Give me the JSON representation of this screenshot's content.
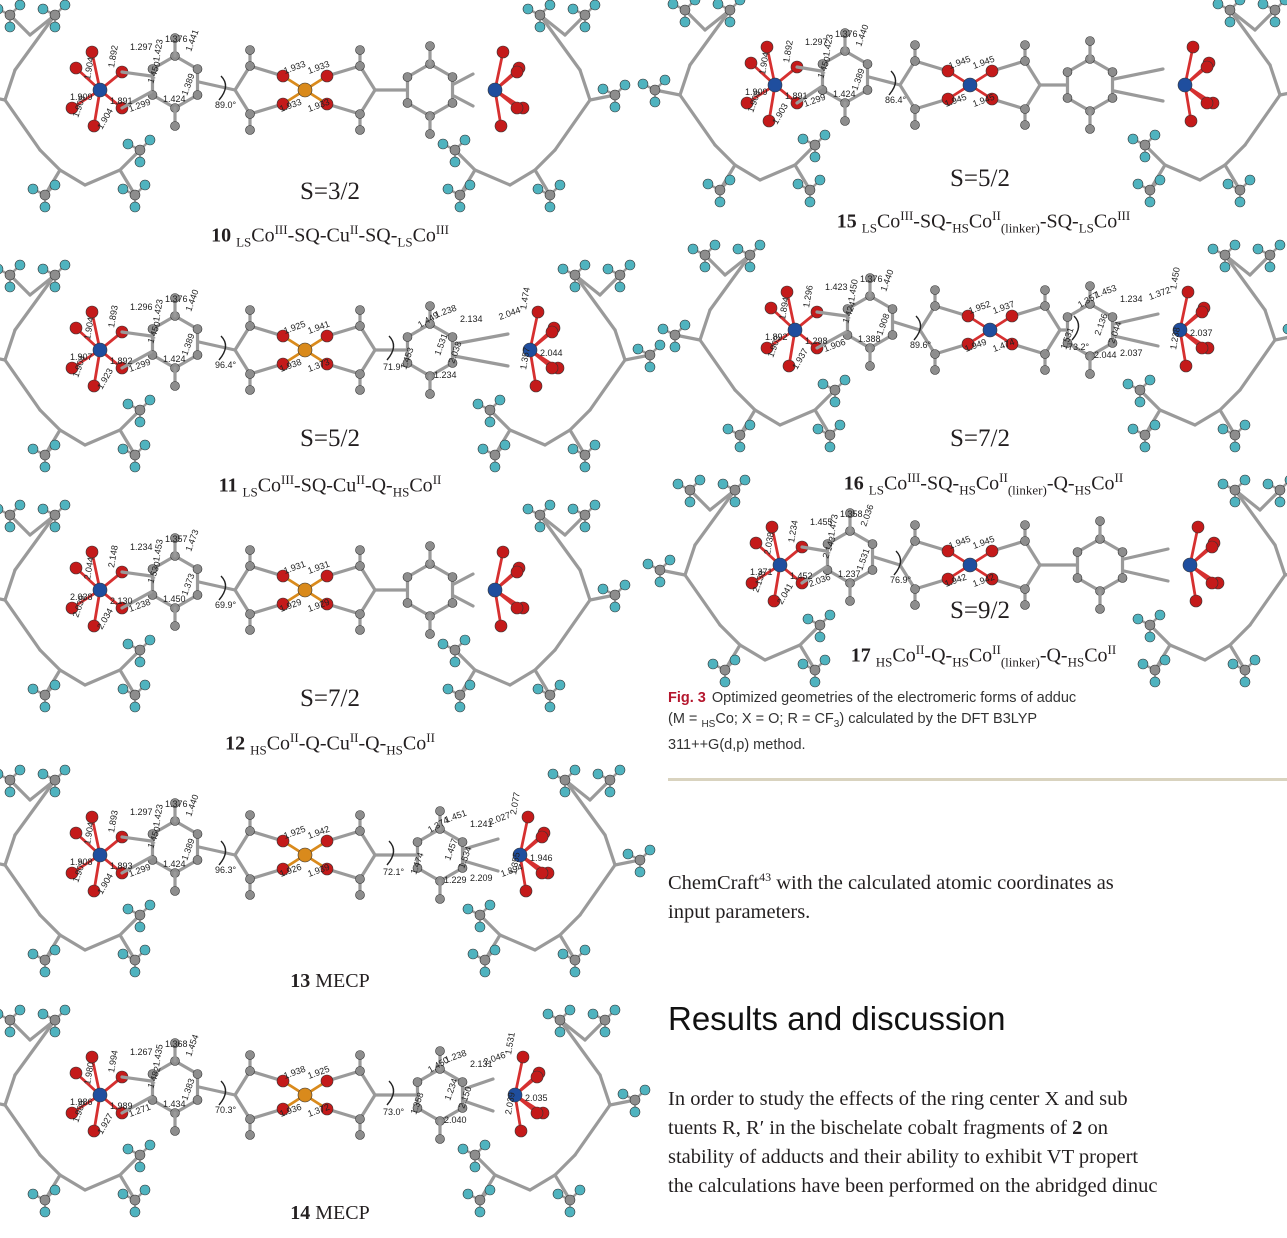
{
  "panels": [
    {
      "id": "10",
      "spin": "S=3/2",
      "num": "10",
      "parts": [
        [
          "LS",
          ""
        ],
        [
          "Co",
          "III"
        ],
        [
          "-SQ-Cu",
          "II"
        ],
        [
          "-SQ-",
          ""
        ],
        [
          "LS",
          ""
        ],
        [
          "Co",
          "III"
        ]
      ],
      "bonds": [
        "1.904",
        "1.892",
        "1.297",
        "1.376",
        "1.423",
        "1.441",
        "1.450",
        "1.424",
        "1.389",
        "1.909",
        "1.891",
        "1.299",
        "1.908",
        "1.904",
        "1.933",
        "1.933",
        "1.933",
        "1.933"
      ],
      "angle": "89.0°"
    },
    {
      "id": "11",
      "spin": "S=5/2",
      "num": "11",
      "parts": [
        [
          "LS",
          ""
        ],
        [
          "Co",
          "III"
        ],
        [
          "-SQ-Cu",
          "II"
        ],
        [
          "-Q-",
          ""
        ],
        [
          "HS",
          ""
        ],
        [
          "Co",
          "II"
        ]
      ],
      "bonds": [
        "1.904",
        "1.893",
        "1.296",
        "1.376",
        "1.423",
        "1.440",
        "1.450",
        "1.424",
        "1.389",
        "1.907",
        "1.892",
        "1.299",
        "1.904",
        "1.923",
        "1.925",
        "1.941",
        "1.938",
        "1.373",
        "1.449",
        "1.238",
        "2.134",
        "2.044",
        "1.474",
        "1.453",
        "1.531",
        "2.038",
        "2.044",
        "1.357",
        "1.234"
      ],
      "angle": "96.4°",
      "angle2": "71.9°"
    },
    {
      "id": "12",
      "spin": "S=7/2",
      "num": "12",
      "parts": [
        [
          "HS",
          ""
        ],
        [
          "Co",
          "II"
        ],
        [
          "-Q-Cu",
          "II"
        ],
        [
          "-Q-",
          ""
        ],
        [
          "HS",
          ""
        ],
        [
          "Co",
          "II"
        ]
      ],
      "bonds": [
        "2.044",
        "2.148",
        "1.234",
        "1.357",
        "1.453",
        "1.473",
        "1.530",
        "1.450",
        "1.373",
        "2.038",
        "2.130",
        "1.238",
        "2.039",
        "2.034",
        "1.931",
        "1.931",
        "1.929",
        "1.929"
      ],
      "angle": "69.9°"
    },
    {
      "id": "13",
      "spin": "",
      "num": "13",
      "parts": [
        [
          "MECP",
          ""
        ]
      ],
      "bonds": [
        "1.904",
        "1.893",
        "1.297",
        "1.376",
        "1.423",
        "1.440",
        "1.450",
        "1.424",
        "1.389",
        "1.908",
        "1.893",
        "1.299",
        "1.907",
        "1.904",
        "1.925",
        "1.942",
        "1.926",
        "1.939",
        "1.374",
        "1.451",
        "1.241",
        "2.027",
        "2.077",
        "1.474",
        "1.457",
        "1.534",
        "1.946",
        "1.355",
        "1.229",
        "2.209",
        "1.894"
      ],
      "angle": "96.3°",
      "angle2": "72.1°"
    },
    {
      "id": "14",
      "spin": "",
      "num": "14",
      "parts": [
        [
          "MECP",
          ""
        ]
      ],
      "bonds": [
        "1.980",
        "1.994",
        "1.267",
        "1.368",
        "1.435",
        "1.454",
        "1.482",
        "1.434",
        "1.383",
        "1.986",
        "1.989",
        "1.271",
        "1.980",
        "1.927",
        "1.938",
        "1.925",
        "1.936",
        "1.372",
        "1.450",
        "1.238",
        "2.131",
        "2.046",
        "1.531",
        "1.358",
        "1.234",
        "2.150",
        "2.035",
        "2.039",
        "2.040"
      ],
      "angle": "70.3°",
      "angle2": "73.0°"
    },
    {
      "id": "15",
      "spin": "S=5/2",
      "num": "15",
      "parts": [
        [
          "LS",
          ""
        ],
        [
          "Co",
          "III"
        ],
        [
          "-SQ-",
          ""
        ],
        [
          "HS",
          ""
        ],
        [
          "Co",
          "II"
        ],
        [
          "(linker)",
          ""
        ],
        [
          "-SQ-",
          ""
        ],
        [
          "LS",
          ""
        ],
        [
          "Co",
          "III"
        ]
      ],
      "bonds": [
        "1.904",
        "1.892",
        "1.297",
        "1.376",
        "1.423",
        "1.440",
        "1.450",
        "1.424",
        "1.389",
        "1.909",
        "1.891",
        "1.299",
        "1.908",
        "1.903",
        "1.945",
        "1.945",
        "1.945",
        "1.945"
      ],
      "angle": "86.4°"
    },
    {
      "id": "16",
      "spin": "S=7/2",
      "num": "16",
      "parts": [
        [
          "LS",
          ""
        ],
        [
          "Co",
          "III"
        ],
        [
          "-SQ-",
          ""
        ],
        [
          "HS",
          ""
        ],
        [
          "Co",
          "II"
        ],
        [
          "(linker)",
          ""
        ],
        [
          "-Q-",
          ""
        ],
        [
          "HS",
          ""
        ],
        [
          "Co",
          "II"
        ]
      ],
      "bonds": [
        "1.894",
        "1.296",
        "1.423",
        "1.376",
        "1.450",
        "1.440",
        "1.424",
        "1.388",
        "1.908",
        "1.892",
        "1.298",
        "1.906",
        "1.903",
        "1.937",
        "1.952",
        "1.937",
        "1.949",
        "1.474",
        "1.357",
        "1.453",
        "1.234",
        "1.372",
        "1.450",
        "1.531",
        "2.136",
        "2.044",
        "2.037",
        "1.238",
        "2.044",
        "2.037"
      ],
      "angle": "89.6°",
      "angle2": "73.2°"
    },
    {
      "id": "17",
      "spin": "S=9/2",
      "num": "17",
      "parts": [
        [
          "HS",
          ""
        ],
        [
          "Co",
          "II"
        ],
        [
          "-Q-",
          ""
        ],
        [
          "HS",
          ""
        ],
        [
          "Co",
          "II"
        ],
        [
          "(linker)",
          ""
        ],
        [
          "-Q-",
          ""
        ],
        [
          "HS",
          ""
        ],
        [
          "Co",
          "II"
        ]
      ],
      "bonds": [
        "2.038",
        "1.234",
        "1.455",
        "1.358",
        "1.473",
        "2.036",
        "2.143",
        "1.237",
        "1.531",
        "1.371",
        "1.452",
        "2.036",
        "2.138",
        "2.041",
        "1.945",
        "1.945",
        "1.942",
        "1.942"
      ],
      "angle": "76.9°"
    }
  ],
  "caption": {
    "label": "Fig. 3",
    "line1": "Optimized geometries of the electromeric forms of adduc",
    "line2a": "(M = ",
    "line2sub": "HS",
    "line2b": "Co; X = O; R = CF",
    "line2sub3": "3",
    "line2c": ") calculated by the DFT B3LYP",
    "line3": "311++G(d,p) method."
  },
  "paragraph1": {
    "a": "ChemCraft",
    "sup": "43",
    "b": " with the calculated atomic coordinates as",
    "line2": "input parameters."
  },
  "heading": "Results and discussion",
  "paragraph2": {
    "line1": "In order to study the effects of the ring center X and sub",
    "line2a": "tuents R, R′ in the bischelate cobalt fragments of ",
    "line2b": "2",
    "line2c": " on",
    "line3": "stability of adducts and their ability to exhibit VT propert",
    "line4": "the calculations have been performed on the abridged dinuc"
  },
  "colors": {
    "cobalt": "#1f4e9e",
    "copper": "#d98a1c",
    "oxygen": "#c41a1a",
    "carbon": "#8d8d8d",
    "fluorine": "#4fb3bf",
    "bond": "#9a9a9a",
    "coord": "#d63030",
    "caption_label": "#b5172e"
  }
}
